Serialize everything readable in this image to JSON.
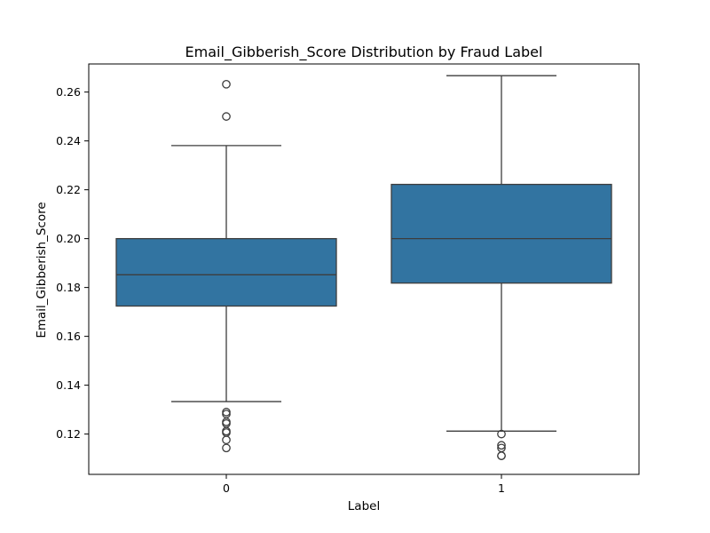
{
  "chart_data": {
    "type": "box",
    "title": "Email_Gibberish_Score Distribution by Fraud Label",
    "xlabel": "Label",
    "ylabel": "Email_Gibberish_Score",
    "categories": [
      "0",
      "1"
    ],
    "ylim": [
      0.1035,
      0.2715
    ],
    "yticks": [
      0.12,
      0.14,
      0.16,
      0.18,
      0.2,
      0.22,
      0.24,
      0.26
    ],
    "ytick_labels": [
      "0.12",
      "0.14",
      "0.16",
      "0.18",
      "0.20",
      "0.22",
      "0.24",
      "0.26"
    ],
    "box_color": "#3274a1",
    "edge_color": "#3d3d3d",
    "grid": false,
    "boxes": [
      {
        "category": "0",
        "whisker_low": 0.1333,
        "q1": 0.1724,
        "median": 0.1852,
        "q3": 0.2,
        "whisker_high": 0.2381,
        "outliers": [
          0.2632,
          0.25,
          0.129,
          0.1282,
          0.125,
          0.1243,
          0.1212,
          0.1206,
          0.1176,
          0.1143
        ]
      },
      {
        "category": "1",
        "whisker_low": 0.1212,
        "q1": 0.1818,
        "median": 0.2,
        "q3": 0.2222,
        "whisker_high": 0.2667,
        "outliers": [
          0.12,
          0.1154,
          0.1143,
          0.1111,
          0.1111
        ]
      }
    ]
  }
}
